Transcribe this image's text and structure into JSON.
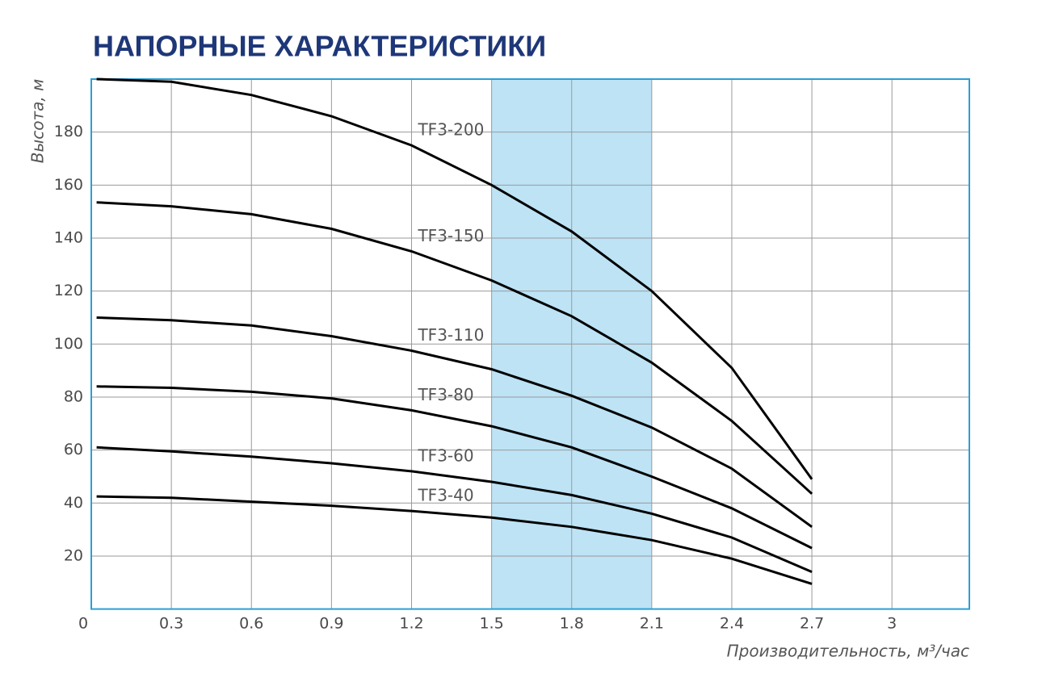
{
  "chart_data": {
    "type": "line",
    "title": "НАПОРНЫЕ ХАРАКТЕРИСТИКИ",
    "x_label": "Производительность, м³/час",
    "y_label": "Высота, м",
    "xlim": [
      0,
      3.29
    ],
    "ylim": [
      0,
      200
    ],
    "xticks": [
      0,
      0.3,
      0.6,
      0.9,
      1.2,
      1.5,
      1.8,
      2.1,
      2.4,
      2.7,
      3
    ],
    "yticks": [
      20,
      40,
      60,
      80,
      100,
      120,
      140,
      160,
      180
    ],
    "grid": true,
    "highlight_range": [
      1.5,
      2.1
    ],
    "highlight_color": "#bde3f5",
    "x": [
      0.02,
      0.3,
      0.6,
      0.9,
      1.2,
      1.5,
      1.8,
      2.1,
      2.4,
      2.7
    ],
    "series": [
      {
        "name": "TF3-200",
        "color": "#000000",
        "values": [
          200,
          199,
          194,
          186,
          175,
          160,
          142.5,
          120,
          91,
          49
        ]
      },
      {
        "name": "TF3-150",
        "color": "#000000",
        "values": [
          153.5,
          152,
          149,
          143.5,
          135,
          124,
          110.5,
          93,
          71,
          43.5
        ]
      },
      {
        "name": "TF3-110",
        "color": "#000000",
        "values": [
          110,
          109,
          107,
          103,
          97.5,
          90.5,
          80.5,
          68.5,
          53,
          31
        ]
      },
      {
        "name": "TF3-80",
        "color": "#000000",
        "values": [
          84,
          83.5,
          82,
          79.5,
          75,
          69,
          61,
          50,
          38,
          23
        ]
      },
      {
        "name": "TF3-60",
        "color": "#000000",
        "values": [
          61,
          59.5,
          57.5,
          55,
          52,
          48,
          43,
          36,
          27,
          14
        ]
      },
      {
        "name": "TF3-40",
        "color": "#000000",
        "values": [
          42.5,
          42,
          40.5,
          39,
          37,
          34.5,
          31,
          26,
          19,
          9.5
        ]
      }
    ]
  }
}
